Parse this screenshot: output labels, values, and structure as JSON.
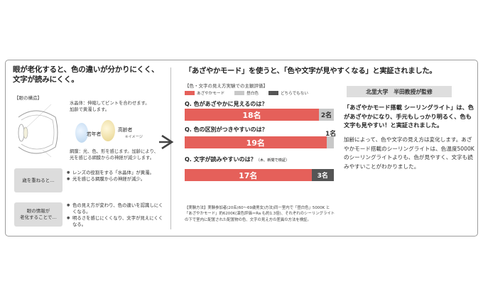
{
  "left": {
    "headline": [
      "眼が老化すると、色の違いが分かりにくく、",
      "文字が読みにくく。"
    ],
    "eye_structure_label": "【眼の構造】",
    "lens_note": [
      "水晶体：伸縮してピントを合わせます。",
      "加齢で黄濁します。"
    ],
    "young_label": "若年者",
    "elderly_label": "高齢者",
    "image_note": "※イメージ",
    "retina_note": [
      "網膜：光、色、形を感じます。加齢により、",
      "光を感じる網膜からの神経が減少します。"
    ],
    "aging_box": "歳を重ねると…",
    "aging_bullets": [
      "レンズの役割をする「水晶体」が黄濁。",
      "光を感じる網膜からの神経が減少。"
    ],
    "info_box": [
      "眼の情報が",
      "老化することで…"
    ],
    "info_bullets": [
      "色の見え方が変わり、色の違いを認識しにくくなる。",
      "明るさを感じにくくなり、文字が見えにくくなる。"
    ]
  },
  "right": {
    "headline": "「あざやかモード」を使うと、「色や文字が見やすくなる」と実証されました。",
    "chart_title": "【色・文字の見え方実験での主観評価】",
    "legend": [
      "あざやかモード",
      "昼白色",
      "どちらでもない"
    ],
    "method_text": "【実験方法】実験参加者(20名(60～69歳男女)方法)同一室内で「昼白色」5000K と「あざやかモード」約6200K(演色評価＝Ra も約1.3倍)、それぞれのシーリングライトの下で室内に配置された配置物の色、文字の見え方の差異の方法を検証。",
    "supervisor": "北里大学　半田教授が監修",
    "quote": "「あざやかモード搭載 シーリングライト」は、色があざやかになり、手元もしっかり明るく、色も文字も見やすい！と実証されました。",
    "body": "加齢によって、色や文字の見え方は変化します。あざやかモード搭載のシーリングライトは、色温度5000Kのシーリングライトよりも、色が見やすく、文字も読みやすいことがわかりました。"
  },
  "colors": {
    "azayaka": "#e5605a",
    "hiruhaku": "#c8c8c8",
    "neither": "#555555"
  },
  "chart_data": {
    "type": "bar",
    "stacked": true,
    "orientation": "horizontal",
    "title": "【色・文字の見え方実験での主観評価】",
    "total": 20,
    "categories": [
      "色があざやかに見えるのは？",
      "色の区別がつきやすいのは？",
      "文字が読みやすいのは？"
    ],
    "category_notes": [
      "",
      "",
      "（木、新聞で検証）"
    ],
    "series": [
      {
        "name": "あざやかモード",
        "values": [
          18,
          19,
          17
        ]
      },
      {
        "name": "昼白色",
        "values": [
          2,
          1,
          0
        ]
      },
      {
        "name": "どちらでもない",
        "values": [
          0,
          0,
          3
        ]
      }
    ],
    "unit": "名",
    "legend": "top-left"
  }
}
